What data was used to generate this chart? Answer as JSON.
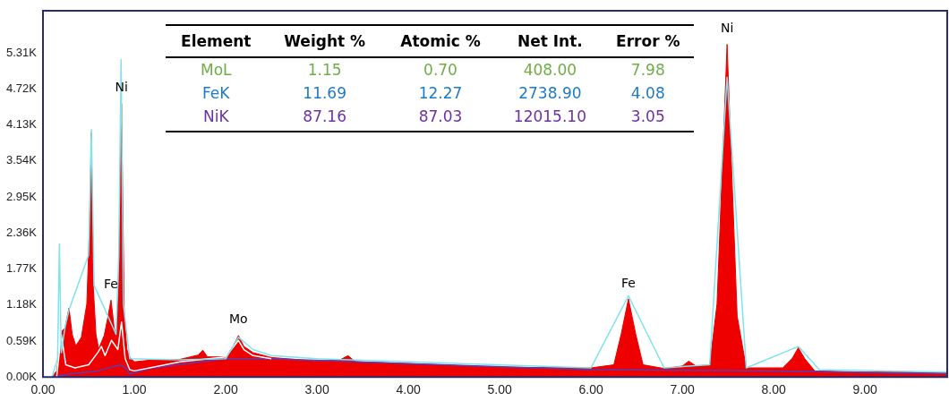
{
  "chart_data": {
    "type": "area",
    "xlim": [
      0,
      9.9
    ],
    "ylim": [
      0,
      6.0
    ],
    "xticks": [
      {
        "value": 0,
        "label": "0.00"
      },
      {
        "value": 1,
        "label": "1.00"
      },
      {
        "value": 2,
        "label": "2.00"
      },
      {
        "value": 3,
        "label": "3.00"
      },
      {
        "value": 4,
        "label": "4.00"
      },
      {
        "value": 5,
        "label": "5.00"
      },
      {
        "value": 6,
        "label": "6.00"
      },
      {
        "value": 7,
        "label": "7.00"
      },
      {
        "value": 8,
        "label": "8.00"
      },
      {
        "value": 9,
        "label": "9.00"
      }
    ],
    "yticks": [
      {
        "value": 0,
        "label": "0.00K"
      },
      {
        "value": 0.59,
        "label": "0.59K"
      },
      {
        "value": 1.18,
        "label": "1.18K"
      },
      {
        "value": 1.77,
        "label": "1.77K"
      },
      {
        "value": 2.36,
        "label": "2.36K"
      },
      {
        "value": 2.95,
        "label": "2.95K"
      },
      {
        "value": 3.54,
        "label": "3.54K"
      },
      {
        "value": 4.13,
        "label": "4.13K"
      },
      {
        "value": 4.72,
        "label": "4.72K"
      },
      {
        "value": 5.31,
        "label": "5.31K"
      }
    ],
    "grid": false,
    "legend": false,
    "marker": "none",
    "series": [
      {
        "color": "#ee0000",
        "x": [
          0.1,
          0.15,
          0.19,
          0.21,
          0.24,
          0.285,
          0.32,
          0.36,
          0.42,
          0.48,
          0.51,
          0.53,
          0.55,
          0.58,
          0.61,
          0.67,
          0.7,
          0.745,
          0.78,
          0.8,
          0.83,
          0.86,
          0.89,
          0.92,
          0.95,
          1.0,
          1.2,
          1.5,
          1.7,
          1.75,
          1.8,
          2.0,
          2.08,
          2.14,
          2.2,
          2.3,
          2.5,
          3.0,
          3.25,
          3.34,
          3.42,
          4.0,
          5.0,
          6.0,
          6.25,
          6.33,
          6.41,
          6.49,
          6.57,
          6.8,
          7.0,
          7.07,
          7.15,
          7.3,
          7.38,
          7.44,
          7.49,
          7.54,
          7.6,
          7.7,
          8.1,
          8.2,
          8.27,
          8.34,
          8.45,
          9.0,
          9.7,
          9.9
        ],
        "values": [
          0,
          0.1,
          0.5,
          0.76,
          0.8,
          1.13,
          0.7,
          0.51,
          0.65,
          1.2,
          2.5,
          4.0,
          1.5,
          0.7,
          0.46,
          0.68,
          0.9,
          1.26,
          0.8,
          0.65,
          1.5,
          4.48,
          1.0,
          0.45,
          0.32,
          0.25,
          0.28,
          0.29,
          0.36,
          0.44,
          0.33,
          0.33,
          0.5,
          0.68,
          0.5,
          0.4,
          0.32,
          0.26,
          0.28,
          0.35,
          0.25,
          0.22,
          0.16,
          0.15,
          0.2,
          0.7,
          1.28,
          0.7,
          0.2,
          0.14,
          0.18,
          0.26,
          0.18,
          0.2,
          1.2,
          3.5,
          5.45,
          3.4,
          1.0,
          0.15,
          0.15,
          0.3,
          0.48,
          0.3,
          0.1,
          0.08,
          0.08,
          0.07
        ]
      },
      {
        "type": "line",
        "color": "#5a3cb4",
        "x": [
          0.1,
          0.3,
          0.6,
          0.85,
          0.9,
          0.95,
          1.2,
          2.0,
          2.5,
          4.0,
          6.0,
          8.0,
          9.9
        ],
        "values": [
          0,
          0.05,
          0.1,
          0.2,
          0.15,
          0.05,
          0.15,
          0.3,
          0.3,
          0.22,
          0.12,
          0.1,
          0.05
        ]
      },
      {
        "type": "line",
        "color": "#ffffff",
        "x": [
          0.15,
          0.2,
          0.25,
          0.35,
          0.5,
          0.6,
          0.64,
          0.68,
          0.75,
          0.82,
          0.86,
          0.9,
          0.95,
          1.0,
          1.5,
          2.0,
          2.14,
          2.2,
          2.3,
          2.5
        ],
        "values": [
          0,
          0.7,
          0.2,
          0.15,
          0.2,
          0.4,
          0.5,
          0.35,
          0.6,
          0.45,
          0.9,
          0.3,
          0.12,
          0.1,
          0.25,
          0.33,
          0.6,
          0.45,
          0.35,
          0.3
        ]
      },
      {
        "type": "line",
        "color": "#7fe3ec",
        "x": [
          0.1,
          0.16,
          0.18,
          0.2,
          0.24,
          0.285,
          0.5,
          0.53,
          0.56,
          0.8,
          0.83,
          0.855,
          0.88,
          0.95,
          1.5,
          2.0,
          2.14,
          2.3,
          2.5,
          3.0,
          6.0,
          6.41,
          6.8,
          7.3,
          7.49,
          7.7,
          8.27,
          8.5,
          9.9
        ],
        "values": [
          0,
          0.3,
          2.18,
          0.4,
          0.8,
          1.1,
          2.0,
          4.05,
          1.5,
          0.7,
          2.0,
          5.2,
          1.2,
          0.3,
          0.28,
          0.3,
          0.65,
          0.45,
          0.35,
          0.3,
          0.15,
          1.33,
          0.15,
          0.2,
          4.91,
          0.15,
          0.5,
          0.12,
          0.08
        ]
      }
    ],
    "annotations": [
      {
        "text": "Ni",
        "x": 0.86,
        "y": 4.48
      },
      {
        "text": "Fe",
        "x": 0.745,
        "y": 1.26
      },
      {
        "text": "Mo",
        "x": 2.14,
        "y": 0.68
      },
      {
        "text": "Fe",
        "x": 6.41,
        "y": 1.28
      },
      {
        "text": "Ni",
        "x": 7.49,
        "y": 5.45
      },
      "Element",
      "Weight %",
      "Atomic %",
      "Net Int.",
      "Error %",
      "MoL",
      "1.15",
      "0.70",
      "408.00",
      "7.98",
      "FeK",
      "11.69",
      "12.27",
      "2738.90",
      "4.08",
      "NiK",
      "87.16",
      "87.03",
      "12015.10",
      "3.05"
    ]
  }
}
